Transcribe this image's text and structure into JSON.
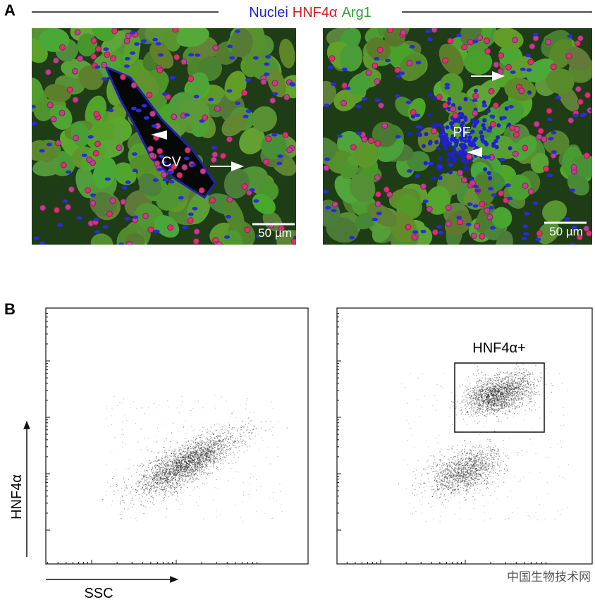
{
  "panel_a": {
    "label": "A",
    "legend": [
      "Nuclei",
      "HNF4α",
      "Arg1"
    ],
    "left_image": {
      "vessel_label": "CV",
      "scale_bar": "50 µm"
    },
    "right_image": {
      "vessel_label": "PF",
      "scale_bar": "50 µm"
    }
  },
  "panel_b": {
    "label": "B",
    "y_axis_label": "HNF4α",
    "x_axis_label": "SSC",
    "gate_label": "HNF4α+"
  },
  "watermark": "中国生物技术网"
}
